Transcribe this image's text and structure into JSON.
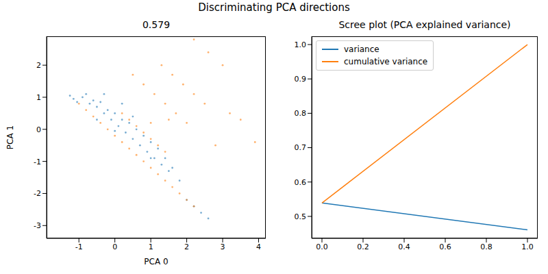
{
  "chart_data": [
    {
      "type": "scatter",
      "suptitle": "Discriminating PCA directions",
      "title": "0.579",
      "x_label": "PCA 0",
      "y_label": "PCA 1",
      "xlim": [
        -1.9,
        4.2
      ],
      "xticks": [
        -1,
        0,
        1,
        2,
        3,
        4
      ],
      "ylim": [
        -3.4,
        2.9
      ],
      "yticks": [
        -3,
        -2,
        -1,
        0,
        1,
        2
      ],
      "grid": false,
      "marker": "dot",
      "series": [
        {
          "color": "#1f77b4",
          "x": [
            -1.25,
            -1.15,
            -1.05,
            -0.9,
            -0.8,
            -0.7,
            -0.6,
            -0.5,
            -0.4,
            -0.3,
            -0.2,
            -0.1,
            0.0,
            0.1,
            0.2,
            0.3,
            0.4,
            0.5,
            0.6,
            0.7,
            0.8,
            0.9,
            1.0,
            1.1,
            1.2,
            1.3,
            1.4,
            1.5,
            1.6,
            1.8,
            2.0,
            2.2,
            2.4,
            2.6,
            -0.5,
            0.0,
            0.5,
            1.0,
            0.2,
            -0.3
          ],
          "y": [
            1.05,
            0.95,
            0.85,
            1.0,
            1.1,
            0.8,
            0.9,
            0.7,
            0.85,
            0.5,
            0.6,
            0.3,
            0.5,
            0.1,
            0.3,
            -0.1,
            0.2,
            -0.3,
            0.0,
            -0.5,
            -0.2,
            -0.7,
            -0.4,
            -0.9,
            -0.6,
            -1.1,
            -0.9,
            -1.3,
            -1.2,
            -1.6,
            -2.2,
            -2.4,
            -2.6,
            -2.78,
            0.3,
            -0.05,
            0.4,
            -0.9,
            0.8,
            1.1
          ]
        },
        {
          "color": "#ff7f0e",
          "x": [
            -1.0,
            -0.8,
            -0.6,
            -0.4,
            -0.2,
            0.0,
            0.2,
            0.4,
            0.6,
            0.8,
            1.0,
            1.2,
            1.4,
            1.6,
            1.8,
            2.0,
            2.2,
            0.2,
            0.4,
            0.6,
            0.8,
            1.0,
            1.2,
            1.4,
            0.5,
            0.8,
            1.1,
            1.4,
            1.7,
            2.0,
            1.3,
            1.6,
            1.9,
            2.2,
            2.5,
            2.2,
            2.6,
            3.0,
            3.2,
            3.5,
            3.9,
            2.8,
            1.5,
            1.0
          ],
          "y": [
            0.8,
            0.6,
            0.4,
            0.2,
            0.0,
            -0.2,
            -0.4,
            -0.6,
            -0.8,
            -1.0,
            -1.2,
            -1.4,
            -1.6,
            -1.8,
            -2.0,
            -2.2,
            -2.4,
            0.5,
            0.3,
            0.1,
            -0.1,
            -0.3,
            -0.5,
            -0.7,
            1.7,
            1.4,
            1.1,
            0.8,
            0.5,
            0.2,
            2.0,
            1.7,
            1.4,
            1.1,
            0.8,
            2.8,
            2.4,
            2.0,
            0.5,
            0.3,
            -0.4,
            -0.5,
            0.3,
            0.2
          ]
        }
      ]
    },
    {
      "type": "line",
      "title": "Scree plot (PCA explained variance)",
      "x": [
        0,
        1
      ],
      "xlim": [
        -0.05,
        1.05
      ],
      "xticks": [
        {
          "value": 0,
          "label": "0.0"
        },
        {
          "value": 0.2,
          "label": "0.2"
        },
        {
          "value": 0.4,
          "label": "0.4"
        },
        {
          "value": 0.6,
          "label": "0.6"
        },
        {
          "value": 0.8,
          "label": "0.8"
        },
        {
          "value": 1,
          "label": "1.0"
        }
      ],
      "ylim": [
        0.436,
        1.024
      ],
      "yticks": [
        {
          "value": 0.5,
          "label": "0.5"
        },
        {
          "value": 0.6,
          "label": "0.6"
        },
        {
          "value": 0.7,
          "label": "0.7"
        },
        {
          "value": 0.8,
          "label": "0.8"
        },
        {
          "value": 0.9,
          "label": "0.9"
        },
        {
          "value": 1,
          "label": "1.0"
        }
      ],
      "legend": "upper left",
      "grid": false,
      "series": [
        {
          "name": "variance",
          "color": "#1f77b4",
          "values": [
            0.539,
            0.461
          ]
        },
        {
          "name": "cumulative variance",
          "color": "#ff7f0e",
          "values": [
            0.539,
            1.0
          ]
        }
      ]
    }
  ]
}
